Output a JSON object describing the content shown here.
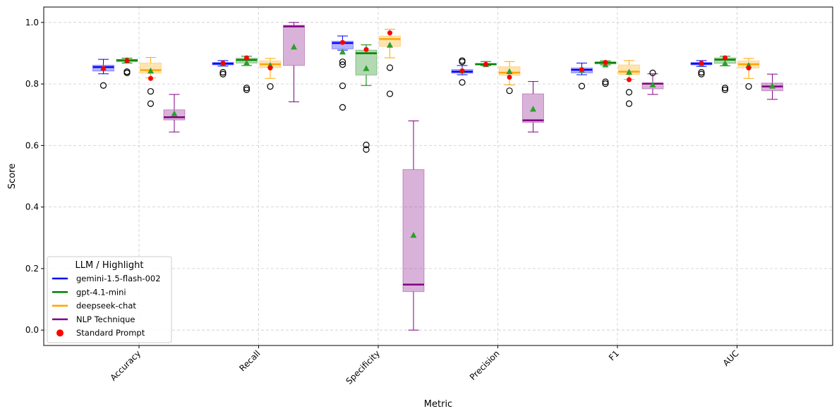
{
  "chart_data": {
    "type": "box",
    "title": "",
    "xlabel": "Metric",
    "ylabel": "Score",
    "ylim": [
      -0.05,
      1.05
    ],
    "yticks": [
      0.0,
      0.2,
      0.4,
      0.6,
      0.8,
      1.0
    ],
    "ytick_labels": [
      "0.0",
      "0.2",
      "0.4",
      "0.6",
      "0.8",
      "1.0"
    ],
    "grid": true,
    "categories": [
      "Accuracy",
      "Recall",
      "Specificity",
      "Precision",
      "F1",
      "AUC"
    ],
    "legend": {
      "title": "LLM / Highlight",
      "position": "lower-left",
      "entries": [
        {
          "label": "gemini-1.5-flash-002",
          "marker": "line",
          "color": "#0000ff"
        },
        {
          "label": "gpt-4.1-mini",
          "marker": "line",
          "color": "#008000"
        },
        {
          "label": "deepseek-chat",
          "marker": "line",
          "color": "#ffa500"
        },
        {
          "label": "NLP Technique",
          "marker": "line",
          "color": "#800080"
        },
        {
          "label": "Standard Prompt",
          "marker": "dot",
          "color": "#ff0000"
        }
      ]
    },
    "series": [
      {
        "name": "gemini-1.5-flash-002",
        "color": "#0000ff",
        "boxes": [
          {
            "min": 0.833,
            "q1": 0.842,
            "median": 0.855,
            "q3": 0.861,
            "max": 0.88,
            "mean": 0.852,
            "standard": 0.85,
            "outliers": [
              0.795
            ]
          },
          {
            "min": 0.858,
            "q1": 0.862,
            "median": 0.866,
            "q3": 0.87,
            "max": 0.876,
            "mean": 0.866,
            "standard": 0.868,
            "outliers": [
              0.838,
              0.832
            ]
          },
          {
            "min": 0.91,
            "q1": 0.914,
            "median": 0.933,
            "q3": 0.939,
            "max": 0.956,
            "mean": 0.904,
            "standard": 0.935,
            "outliers": [
              0.872,
              0.863,
              0.794,
              0.724
            ]
          },
          {
            "min": 0.83,
            "q1": 0.835,
            "median": 0.84,
            "q3": 0.847,
            "max": 0.86,
            "mean": 0.842,
            "standard": 0.843,
            "outliers": [
              0.876,
              0.872,
              0.805
            ]
          },
          {
            "min": 0.83,
            "q1": 0.836,
            "median": 0.846,
            "q3": 0.852,
            "max": 0.868,
            "mean": 0.845,
            "standard": 0.847,
            "outliers": [
              0.793
            ]
          },
          {
            "min": 0.857,
            "q1": 0.862,
            "median": 0.866,
            "q3": 0.87,
            "max": 0.876,
            "mean": 0.866,
            "standard": 0.868,
            "outliers": [
              0.838,
              0.832
            ]
          }
        ]
      },
      {
        "name": "gpt-4.1-mini",
        "color": "#008000",
        "boxes": [
          {
            "min": 0.868,
            "q1": 0.872,
            "median": 0.877,
            "q3": 0.88,
            "max": 0.884,
            "mean": 0.876,
            "standard": 0.876,
            "outliers": [
              0.84,
              0.836
            ]
          },
          {
            "min": 0.86,
            "q1": 0.868,
            "median": 0.878,
            "q3": 0.884,
            "max": 0.89,
            "mean": 0.868,
            "standard": 0.885,
            "outliers": [
              0.787,
              0.781
            ]
          },
          {
            "min": 0.795,
            "q1": 0.829,
            "median": 0.9,
            "q3": 0.91,
            "max": 0.927,
            "mean": 0.85,
            "standard": 0.912,
            "outliers": [
              0.602,
              0.587
            ]
          },
          {
            "min": 0.86,
            "q1": 0.862,
            "median": 0.864,
            "q3": 0.867,
            "max": 0.873,
            "mean": 0.863,
            "standard": 0.864,
            "outliers": []
          },
          {
            "min": 0.862,
            "q1": 0.865,
            "median": 0.869,
            "q3": 0.872,
            "max": 0.875,
            "mean": 0.862,
            "standard": 0.87,
            "outliers": [
              0.807,
              0.801
            ]
          },
          {
            "min": 0.859,
            "q1": 0.867,
            "median": 0.879,
            "q3": 0.885,
            "max": 0.89,
            "mean": 0.867,
            "standard": 0.885,
            "outliers": [
              0.787,
              0.781
            ]
          }
        ]
      },
      {
        "name": "deepseek-chat",
        "color": "#ffa500",
        "boxes": [
          {
            "min": 0.82,
            "q1": 0.835,
            "median": 0.845,
            "q3": 0.868,
            "max": 0.886,
            "mean": 0.842,
            "standard": 0.818,
            "outliers": [
              0.776,
              0.736
            ]
          },
          {
            "min": 0.818,
            "q1": 0.853,
            "median": 0.864,
            "q3": 0.875,
            "max": 0.883,
            "mean": 0.86,
            "standard": 0.852,
            "outliers": [
              0.792
            ]
          },
          {
            "min": 0.885,
            "q1": 0.922,
            "median": 0.946,
            "q3": 0.956,
            "max": 0.978,
            "mean": 0.926,
            "standard": 0.966,
            "outliers": [
              0.853,
              0.768
            ]
          },
          {
            "min": 0.797,
            "q1": 0.828,
            "median": 0.837,
            "q3": 0.856,
            "max": 0.873,
            "mean": 0.84,
            "standard": 0.822,
            "outliers": [
              0.778
            ]
          },
          {
            "min": 0.815,
            "q1": 0.831,
            "median": 0.84,
            "q3": 0.862,
            "max": 0.876,
            "mean": 0.838,
            "standard": 0.814,
            "outliers": [
              0.773,
              0.736
            ]
          },
          {
            "min": 0.818,
            "q1": 0.852,
            "median": 0.864,
            "q3": 0.875,
            "max": 0.883,
            "mean": 0.86,
            "standard": 0.852,
            "outliers": [
              0.792
            ]
          }
        ]
      },
      {
        "name": "NLP Technique",
        "color": "#800080",
        "boxes": [
          {
            "min": 0.644,
            "q1": 0.683,
            "median": 0.692,
            "q3": 0.716,
            "max": 0.766,
            "mean": 0.703,
            "standard": null,
            "outliers": []
          },
          {
            "min": 0.742,
            "q1": 0.86,
            "median": 0.987,
            "q3": 0.991,
            "max": 1.0,
            "mean": 0.92,
            "standard": null,
            "outliers": []
          },
          {
            "min": 0.0,
            "q1": 0.125,
            "median": 0.148,
            "q3": 0.522,
            "max": 0.68,
            "mean": 0.308,
            "standard": null,
            "outliers": []
          },
          {
            "min": 0.644,
            "q1": 0.675,
            "median": 0.682,
            "q3": 0.768,
            "max": 0.808,
            "mean": 0.718,
            "standard": null,
            "outliers": []
          },
          {
            "min": 0.766,
            "q1": 0.784,
            "median": 0.801,
            "q3": 0.803,
            "max": 0.833,
            "mean": 0.797,
            "standard": null,
            "outliers": [
              0.836
            ]
          },
          {
            "min": 0.75,
            "q1": 0.778,
            "median": 0.792,
            "q3": 0.803,
            "max": 0.832,
            "mean": 0.793,
            "standard": null,
            "outliers": []
          }
        ]
      }
    ]
  }
}
